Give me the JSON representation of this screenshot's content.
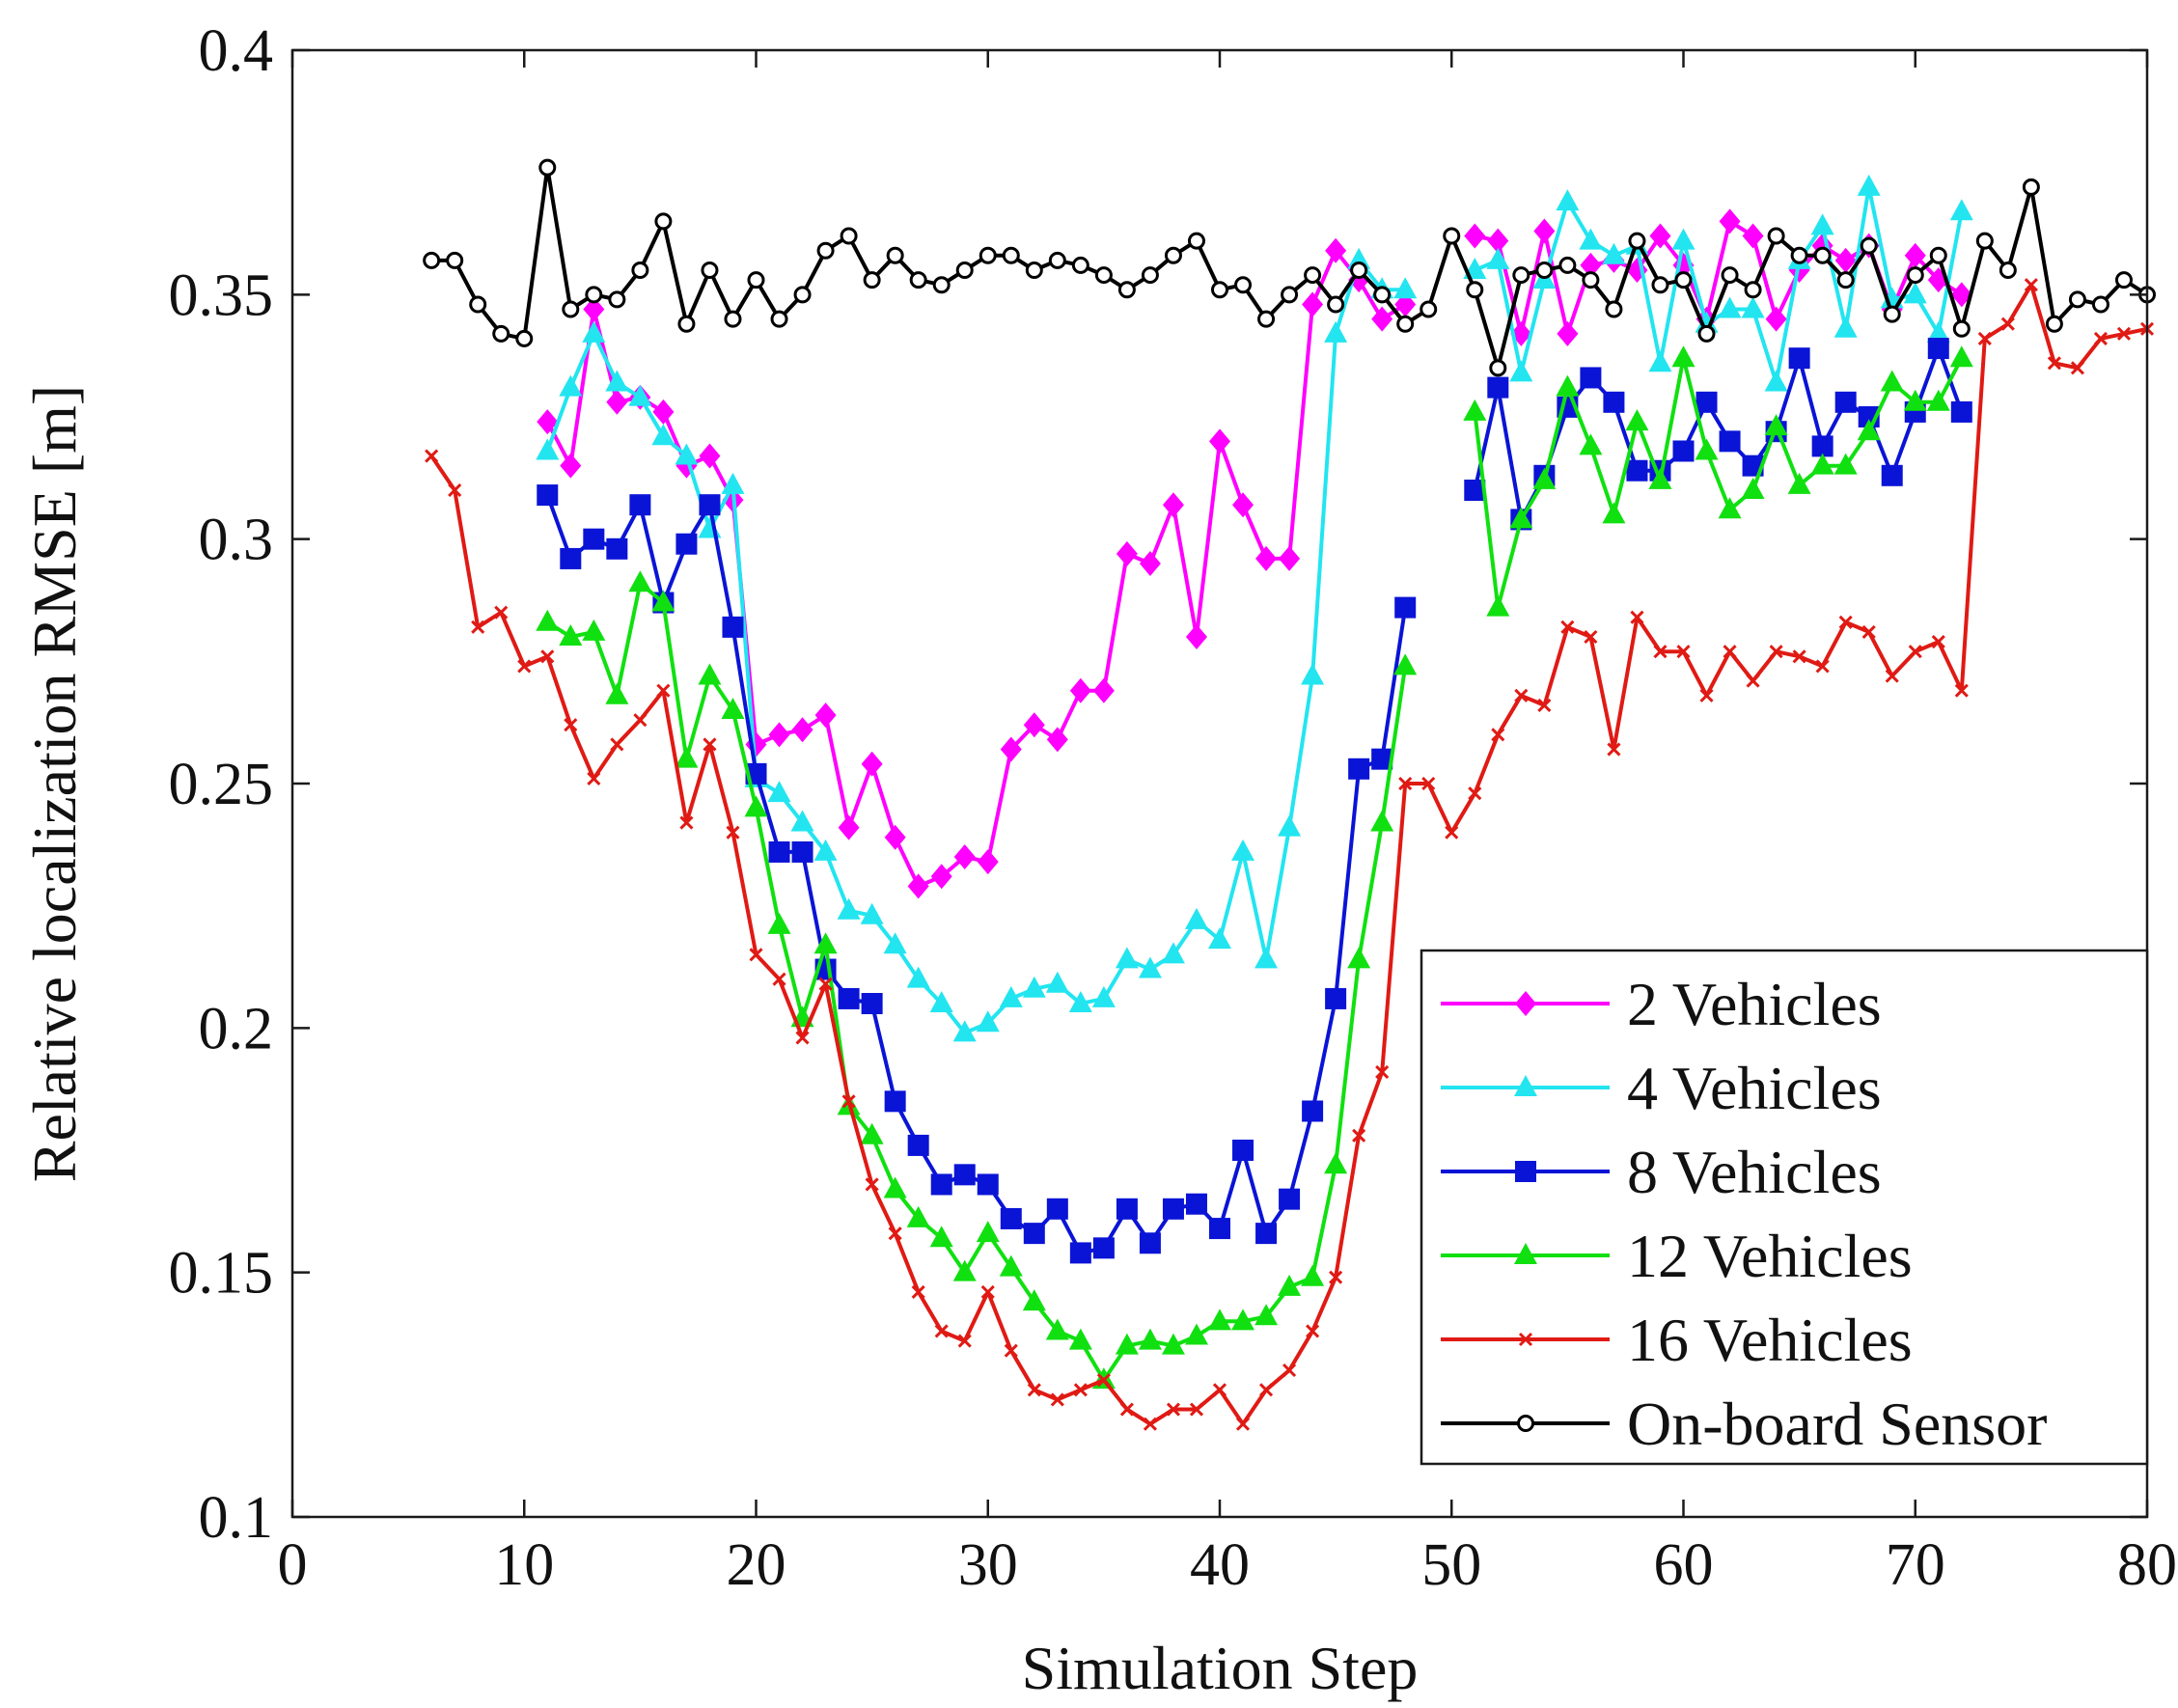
{
  "chart_data": {
    "type": "line",
    "title": "",
    "xlabel": "Simulation Step",
    "ylabel": "Relative localization RMSE [m]",
    "xlim": [
      0,
      80
    ],
    "ylim": [
      0.1,
      0.4
    ],
    "xticks": [
      0,
      10,
      20,
      30,
      40,
      50,
      60,
      70,
      80
    ],
    "xtick_labels": [
      "0",
      "10",
      "20",
      "30",
      "40",
      "50",
      "60",
      "70",
      "80"
    ],
    "yticks": [
      0.1,
      0.15,
      0.2,
      0.25,
      0.3,
      0.35,
      0.4
    ],
    "ytick_labels": [
      "0.1",
      "0.15",
      "0.2",
      "0.25",
      "0.3",
      "0.35",
      "0.4"
    ],
    "grid": false,
    "legend_position": "bottom-right",
    "series": [
      {
        "name": "2 Vehicles",
        "color": "#ff00ff",
        "marker": "diamond",
        "x": [
          11,
          12,
          13,
          14,
          15,
          16,
          17,
          18,
          19,
          20,
          21,
          22,
          23,
          24,
          25,
          26,
          27,
          28,
          29,
          30,
          31,
          32,
          33,
          34,
          35,
          36,
          37,
          38,
          39,
          40,
          41,
          42,
          43,
          44,
          45,
          46,
          47,
          48,
          null,
          51,
          52,
          53,
          54,
          55,
          56,
          57,
          58,
          59,
          60,
          61,
          62,
          63,
          64,
          65,
          66,
          67,
          68,
          69,
          70,
          71,
          72
        ],
        "y": [
          0.324,
          0.315,
          0.347,
          0.328,
          0.329,
          0.326,
          0.315,
          0.317,
          0.308,
          0.258,
          0.26,
          0.261,
          0.264,
          0.241,
          0.254,
          0.239,
          0.229,
          0.231,
          0.235,
          0.234,
          0.257,
          0.262,
          0.259,
          0.269,
          0.269,
          0.297,
          0.295,
          0.307,
          0.28,
          0.32,
          0.307,
          0.296,
          0.296,
          0.348,
          0.359,
          0.353,
          0.345,
          0.348,
          null,
          0.362,
          0.361,
          0.342,
          0.363,
          0.342,
          0.356,
          0.357,
          0.355,
          0.362,
          0.356,
          0.345,
          0.365,
          0.362,
          0.345,
          0.355,
          0.36,
          0.357,
          0.36,
          0.347,
          0.358,
          0.353,
          0.35
        ]
      },
      {
        "name": "4 Vehicles",
        "color": "#22e5f0",
        "marker": "triangle",
        "x": [
          11,
          12,
          13,
          14,
          15,
          16,
          17,
          18,
          19,
          20,
          21,
          22,
          23,
          24,
          25,
          26,
          27,
          28,
          29,
          30,
          31,
          32,
          33,
          34,
          35,
          36,
          37,
          38,
          39,
          40,
          41,
          42,
          43,
          44,
          45,
          46,
          47,
          48,
          null,
          51,
          52,
          53,
          54,
          55,
          56,
          57,
          58,
          59,
          60,
          61,
          62,
          63,
          64,
          65,
          66,
          67,
          68,
          69,
          70,
          71,
          72
        ],
        "y": [
          0.318,
          0.331,
          0.342,
          0.332,
          0.329,
          0.321,
          0.317,
          0.302,
          0.311,
          0.251,
          0.248,
          0.242,
          0.236,
          0.224,
          0.223,
          0.217,
          0.21,
          0.205,
          0.199,
          0.201,
          0.206,
          0.208,
          0.209,
          0.205,
          0.206,
          0.214,
          0.212,
          0.215,
          0.222,
          0.218,
          0.236,
          0.214,
          0.241,
          0.272,
          0.342,
          0.357,
          0.351,
          0.351,
          null,
          0.355,
          0.357,
          0.334,
          0.353,
          0.369,
          0.361,
          0.358,
          0.36,
          0.336,
          0.361,
          0.344,
          0.347,
          0.347,
          0.332,
          0.357,
          0.364,
          0.343,
          0.372,
          0.349,
          0.35,
          0.342,
          0.367
        ]
      },
      {
        "name": "8 Vehicles",
        "color": "#0a14d6",
        "marker": "square",
        "x": [
          11,
          12,
          13,
          14,
          15,
          16,
          17,
          18,
          19,
          20,
          21,
          22,
          23,
          24,
          25,
          26,
          27,
          28,
          29,
          30,
          31,
          32,
          33,
          34,
          35,
          36,
          37,
          38,
          39,
          40,
          41,
          42,
          43,
          44,
          45,
          46,
          47,
          48,
          null,
          51,
          52,
          53,
          54,
          55,
          56,
          57,
          58,
          59,
          60,
          61,
          62,
          63,
          64,
          65,
          66,
          67,
          68,
          69,
          70,
          71,
          72
        ],
        "y": [
          0.309,
          0.296,
          0.3,
          0.298,
          0.307,
          0.287,
          0.299,
          0.307,
          0.282,
          0.252,
          0.236,
          0.236,
          0.212,
          0.206,
          0.205,
          0.185,
          0.176,
          0.168,
          0.17,
          0.168,
          0.161,
          0.158,
          0.163,
          0.154,
          0.155,
          0.163,
          0.156,
          0.163,
          0.164,
          0.159,
          0.175,
          0.158,
          0.165,
          0.183,
          0.206,
          0.253,
          0.255,
          0.286,
          null,
          0.31,
          0.331,
          0.304,
          0.313,
          0.327,
          0.333,
          0.328,
          0.314,
          0.314,
          0.318,
          0.328,
          0.32,
          0.315,
          0.322,
          0.337,
          0.319,
          0.328,
          0.325,
          0.313,
          0.326,
          0.339,
          0.326
        ]
      },
      {
        "name": "12 Vehicles",
        "color": "#10e010",
        "marker": "triangle",
        "x": [
          11,
          12,
          13,
          14,
          15,
          16,
          17,
          18,
          19,
          20,
          21,
          22,
          23,
          24,
          25,
          26,
          27,
          28,
          29,
          30,
          31,
          32,
          33,
          34,
          35,
          36,
          37,
          38,
          39,
          40,
          41,
          42,
          43,
          44,
          45,
          46,
          47,
          48,
          null,
          51,
          52,
          53,
          54,
          55,
          56,
          57,
          58,
          59,
          60,
          61,
          62,
          63,
          64,
          65,
          66,
          67,
          68,
          69,
          70,
          71,
          72
        ],
        "y": [
          0.283,
          0.28,
          0.281,
          0.268,
          0.291,
          0.287,
          0.255,
          0.272,
          0.265,
          0.245,
          0.221,
          0.202,
          0.217,
          0.184,
          0.178,
          0.167,
          0.161,
          0.157,
          0.15,
          0.158,
          0.151,
          0.144,
          0.138,
          0.136,
          0.128,
          0.135,
          0.136,
          0.135,
          0.137,
          0.14,
          0.14,
          0.141,
          0.147,
          0.149,
          0.172,
          0.214,
          0.242,
          0.274,
          null,
          0.326,
          0.286,
          0.304,
          0.312,
          0.331,
          0.319,
          0.305,
          0.324,
          0.312,
          0.337,
          0.318,
          0.306,
          0.31,
          0.323,
          0.311,
          0.315,
          0.315,
          0.322,
          0.332,
          0.328,
          0.328,
          0.337
        ]
      },
      {
        "name": "16 Vehicles",
        "color": "#e01a14",
        "marker": "x",
        "x": [
          6,
          7,
          8,
          9,
          10,
          11,
          12,
          13,
          14,
          15,
          16,
          17,
          18,
          19,
          20,
          21,
          22,
          23,
          24,
          25,
          26,
          27,
          28,
          29,
          30,
          31,
          32,
          33,
          34,
          35,
          36,
          37,
          38,
          39,
          40,
          41,
          42,
          43,
          44,
          45,
          46,
          47,
          48,
          49,
          50,
          51,
          52,
          53,
          54,
          55,
          56,
          57,
          58,
          59,
          60,
          61,
          62,
          63,
          64,
          65,
          66,
          67,
          68,
          69,
          70,
          71,
          72,
          73,
          74,
          75,
          76,
          77,
          78,
          79,
          80
        ],
        "y": [
          0.317,
          0.31,
          0.282,
          0.285,
          0.274,
          0.276,
          0.262,
          0.251,
          0.258,
          0.263,
          0.269,
          0.242,
          0.258,
          0.24,
          0.215,
          0.21,
          0.198,
          0.209,
          0.185,
          0.168,
          0.158,
          0.146,
          0.138,
          0.136,
          0.146,
          0.134,
          0.126,
          0.124,
          0.126,
          0.128,
          0.122,
          0.119,
          0.122,
          0.122,
          0.126,
          0.119,
          0.126,
          0.13,
          0.138,
          0.149,
          0.178,
          0.191,
          0.25,
          0.25,
          0.24,
          0.248,
          0.26,
          0.268,
          0.266,
          0.282,
          0.28,
          0.257,
          0.284,
          0.277,
          0.277,
          0.268,
          0.277,
          0.271,
          0.277,
          0.276,
          0.274,
          0.283,
          0.281,
          0.272,
          0.277,
          0.279,
          0.269,
          0.341,
          0.344,
          0.352,
          0.336,
          0.335,
          0.341,
          0.342,
          0.343
        ]
      },
      {
        "name": "On-board Sensor",
        "color": "#000000",
        "marker": "circle",
        "x": [
          6,
          7,
          8,
          9,
          10,
          11,
          12,
          13,
          14,
          15,
          16,
          17,
          18,
          19,
          20,
          21,
          22,
          23,
          24,
          25,
          26,
          27,
          28,
          29,
          30,
          31,
          32,
          33,
          34,
          35,
          36,
          37,
          38,
          39,
          40,
          41,
          42,
          43,
          44,
          45,
          46,
          47,
          48,
          49,
          50,
          51,
          52,
          53,
          54,
          55,
          56,
          57,
          58,
          59,
          60,
          61,
          62,
          63,
          64,
          65,
          66,
          67,
          68,
          69,
          70,
          71,
          72,
          73,
          74,
          75,
          76,
          77,
          78,
          79,
          80
        ],
        "y": [
          0.357,
          0.357,
          0.348,
          0.342,
          0.341,
          0.376,
          0.347,
          0.35,
          0.349,
          0.355,
          0.365,
          0.344,
          0.355,
          0.345,
          0.353,
          0.345,
          0.35,
          0.359,
          0.362,
          0.353,
          0.358,
          0.353,
          0.352,
          0.355,
          0.358,
          0.358,
          0.355,
          0.357,
          0.356,
          0.354,
          0.351,
          0.354,
          0.358,
          0.361,
          0.351,
          0.352,
          0.345,
          0.35,
          0.354,
          0.348,
          0.355,
          0.35,
          0.344,
          0.347,
          0.362,
          0.351,
          0.335,
          0.354,
          0.355,
          0.356,
          0.353,
          0.347,
          0.361,
          0.352,
          0.353,
          0.342,
          0.354,
          0.351,
          0.362,
          0.358,
          0.358,
          0.353,
          0.36,
          0.346,
          0.354,
          0.358,
          0.343,
          0.361,
          0.355,
          0.372,
          0.344,
          0.349,
          0.348,
          0.353,
          0.35
        ]
      }
    ]
  }
}
